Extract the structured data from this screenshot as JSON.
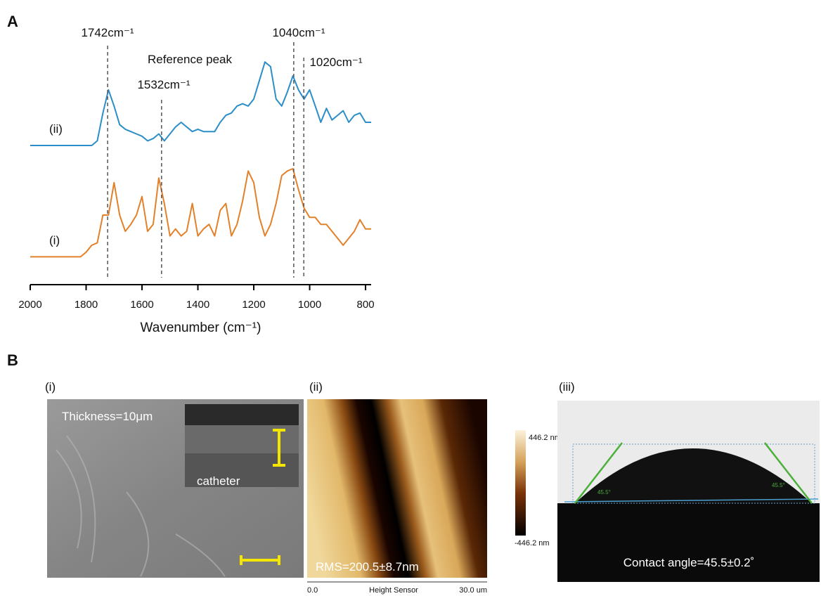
{
  "panel_labels": [
    "A",
    "B"
  ],
  "chart_data": {
    "type": "line",
    "xlabel": "Wavenumber (cm⁻¹)",
    "xlim": [
      2000,
      780
    ],
    "xticks": [
      2000,
      1800,
      1600,
      1400,
      1200,
      1000,
      800
    ],
    "ylim": [
      0,
      100
    ],
    "x": [
      2000,
      1980,
      1960,
      1940,
      1920,
      1900,
      1880,
      1860,
      1840,
      1820,
      1800,
      1780,
      1760,
      1740,
      1720,
      1700,
      1680,
      1660,
      1640,
      1620,
      1600,
      1580,
      1560,
      1540,
      1520,
      1500,
      1480,
      1460,
      1440,
      1420,
      1400,
      1380,
      1360,
      1340,
      1320,
      1300,
      1280,
      1260,
      1240,
      1220,
      1200,
      1180,
      1160,
      1140,
      1120,
      1100,
      1080,
      1060,
      1040,
      1020,
      1000,
      980,
      960,
      940,
      920,
      900,
      880,
      860,
      840,
      820,
      800,
      780
    ],
    "series": [
      {
        "name": "(ii)",
        "color": "#2b8ec8",
        "values": [
          60,
          60,
          60,
          60,
          60,
          60,
          60,
          60,
          60,
          60,
          60,
          60,
          62,
          74,
          84,
          77,
          69,
          67,
          66,
          65,
          64,
          62,
          63,
          65,
          62,
          65,
          68,
          70,
          68,
          66,
          67,
          66,
          66,
          66,
          70,
          73,
          74,
          77,
          78,
          77,
          80,
          88,
          96,
          94,
          80,
          77,
          83,
          90,
          84,
          80,
          84,
          77,
          70,
          76,
          71,
          73,
          75,
          70,
          73,
          74,
          70,
          70
        ]
      },
      {
        "name": "(i)",
        "color": "#e3812a",
        "values": [
          12,
          12,
          12,
          12,
          12,
          12,
          12,
          12,
          12,
          12,
          14,
          17,
          18,
          30,
          30,
          44,
          30,
          23,
          26,
          30,
          38,
          23,
          26,
          46,
          35,
          21,
          24,
          21,
          23,
          35,
          21,
          24,
          26,
          21,
          32,
          35,
          21,
          26,
          36,
          49,
          44,
          29,
          21,
          26,
          35,
          47,
          49,
          50,
          41,
          33,
          29,
          29,
          26,
          26,
          23,
          20,
          17,
          20,
          23,
          28,
          24,
          24
        ]
      }
    ],
    "annotations": [
      {
        "text": "1742cm⁻¹",
        "x": 1723
      },
      {
        "text": "1532cm⁻¹",
        "label_above": "Reference peak",
        "x": 1530
      },
      {
        "text": "1040cm⁻¹",
        "x": 1057
      },
      {
        "text": "1020cm⁻¹",
        "x": 1021
      }
    ]
  },
  "panel_b": {
    "panels": [
      {
        "label": "(i)",
        "texts": [
          "Thickness=10μm",
          "catheter"
        ]
      },
      {
        "label": "(ii)",
        "texts": [
          "RMS=200.5±8.7nm"
        ],
        "colorbar": [
          "446.2 nm",
          "-446.2 nm"
        ],
        "axis": [
          "0.0",
          "Height Sensor",
          "30.0 um"
        ]
      },
      {
        "label": "(iii)",
        "texts": [
          "Contact angle=45.5±0.2˚"
        ],
        "angle_marks": [
          "45.5°",
          "45.5°"
        ]
      }
    ]
  }
}
